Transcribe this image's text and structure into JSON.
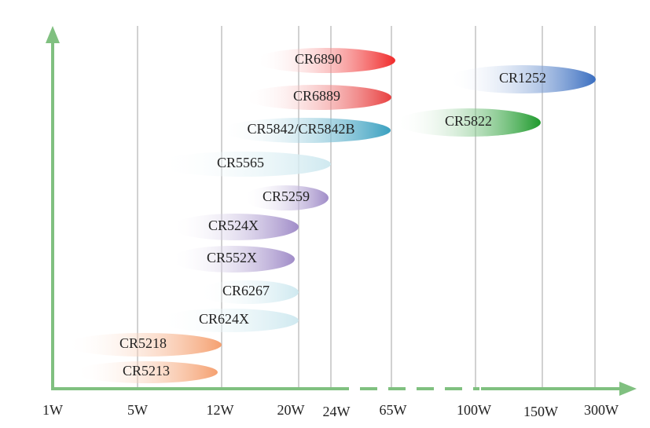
{
  "axis_labels": [
    "1W",
    "5W",
    "12W",
    "20W",
    "24W",
    "65W",
    "100W",
    "150W",
    "300W"
  ],
  "items": [
    "CR6890",
    "CR6889",
    "CR5842/CR5842B",
    "CR5565",
    "CR5259",
    "CR524X",
    "CR552X",
    "CR6267",
    "CR624X",
    "CR5218",
    "CR5213",
    "CR1252",
    "CR5822"
  ]
}
